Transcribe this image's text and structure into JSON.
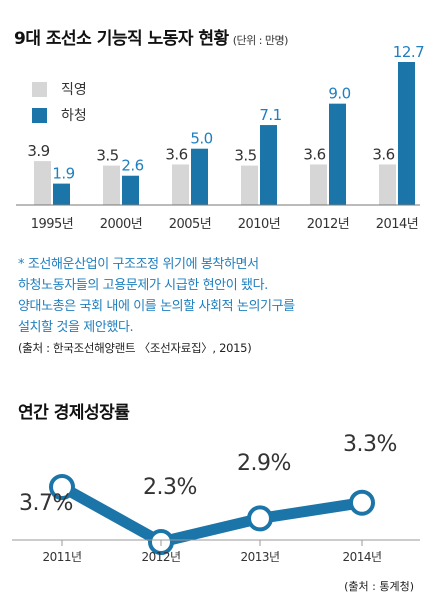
{
  "chart1": {
    "title": "9대 조선소 기능직 노동자 현황",
    "unit": "(단위 : 만명)",
    "note_lines": [
      "* 조선해운산업이 구조조정 위기에 봉착하면서",
      "하청노동자들의 고용문제가 시급한 현안이 됐다.",
      "양대노총은 국회 내에 이를 논의할 사회적 논의기구를",
      "설치할 것을 제안했다."
    ],
    "source": "(출처 : 한국조선해양랜트 〈조선자료집〉, 2015)"
  },
  "chart2": {
    "title": "연간 경제성장률",
    "source": "(출처 : 통계청)"
  },
  "colors": {
    "direct": "#d6d6d6",
    "sub": "#1b75a8",
    "blue_text": "#1f7fbf",
    "line": "#1b75a8"
  },
  "chart_data": [
    {
      "type": "bar",
      "title": "9대 조선소 기능직 노동자 현황",
      "unit": "(단위 : 만명)",
      "categories": [
        "1995년",
        "2000년",
        "2005년",
        "2010년",
        "2012년",
        "2014년"
      ],
      "series": [
        {
          "name": "직영",
          "values": [
            3.9,
            3.5,
            3.6,
            3.5,
            3.6,
            3.6
          ],
          "labels": [
            "3.9",
            "3.5",
            "3.6",
            "3.5",
            "3.6",
            "3.6"
          ]
        },
        {
          "name": "하청",
          "values": [
            1.9,
            2.6,
            5.0,
            7.1,
            9.0,
            12.7
          ],
          "labels": [
            "1.9",
            "2.6",
            "5.0",
            "7.1",
            "9.0",
            "12.7"
          ]
        }
      ],
      "ylim": [
        0,
        12.7
      ],
      "legend": "top-left",
      "grid": false
    },
    {
      "type": "line",
      "title": "연간 경제성장률",
      "categories": [
        "2011년",
        "2012년",
        "2013년",
        "2014년"
      ],
      "values": [
        3.7,
        2.3,
        2.9,
        3.3
      ],
      "labels": [
        "3.7%",
        "2.3%",
        "2.9%",
        "3.3%"
      ],
      "grid": false
    }
  ]
}
